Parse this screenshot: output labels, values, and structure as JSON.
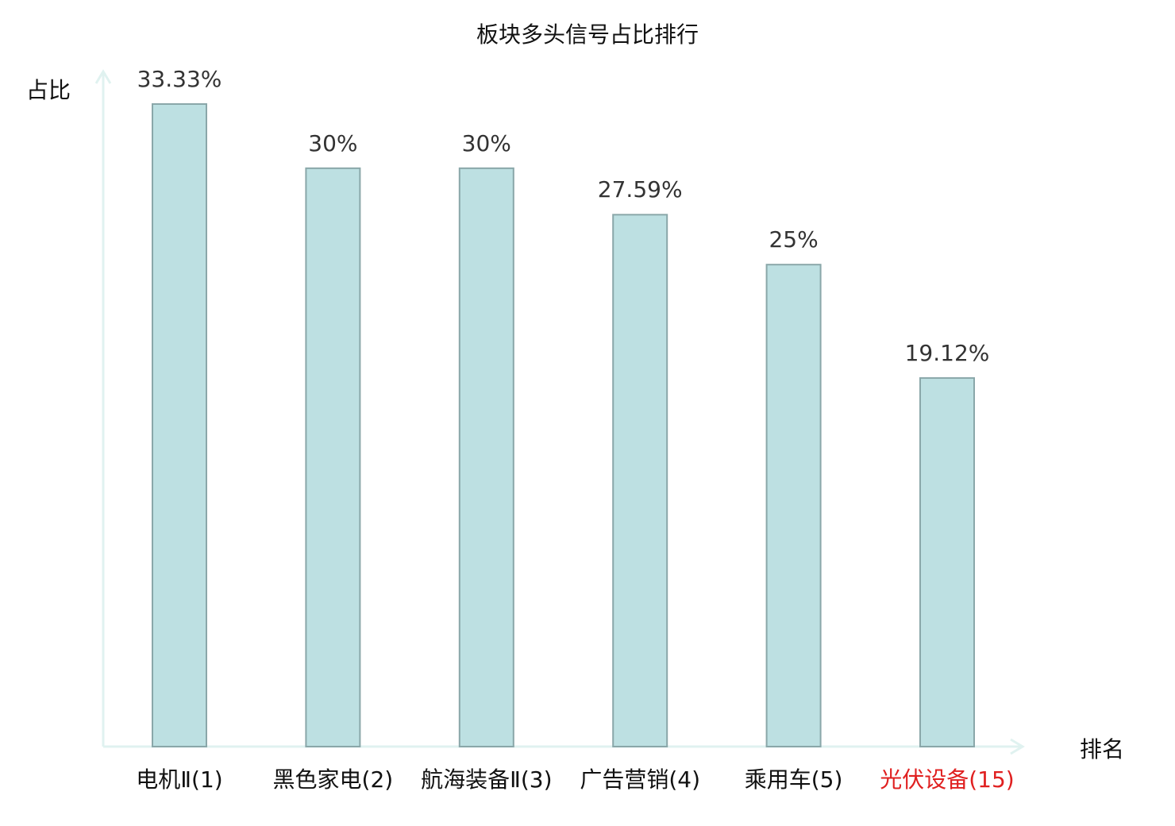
{
  "chart_data": {
    "type": "bar",
    "title": "板块多头信号占比排行",
    "xlabel": "排名",
    "ylabel": "占比",
    "categories": [
      "电机Ⅱ(1)",
      "黑色家电(2)",
      "航海装备Ⅱ(3)",
      "广告营销(4)",
      "乘用车(5)",
      "光伏设备(15)"
    ],
    "values": [
      33.33,
      30,
      30,
      27.59,
      25,
      19.12
    ],
    "value_labels": [
      "33.33%",
      "30%",
      "30%",
      "27.59%",
      "25%",
      "19.12%"
    ],
    "ylim": [
      0,
      33.33
    ],
    "grid": false,
    "colors": {
      "bar_fill": "#bde0e2",
      "bar_stroke": "#8aa7a9",
      "axis": "#e0f2f0",
      "highlight_category": "#e02020",
      "normal_category": "#111111"
    },
    "highlight_index": 5
  }
}
